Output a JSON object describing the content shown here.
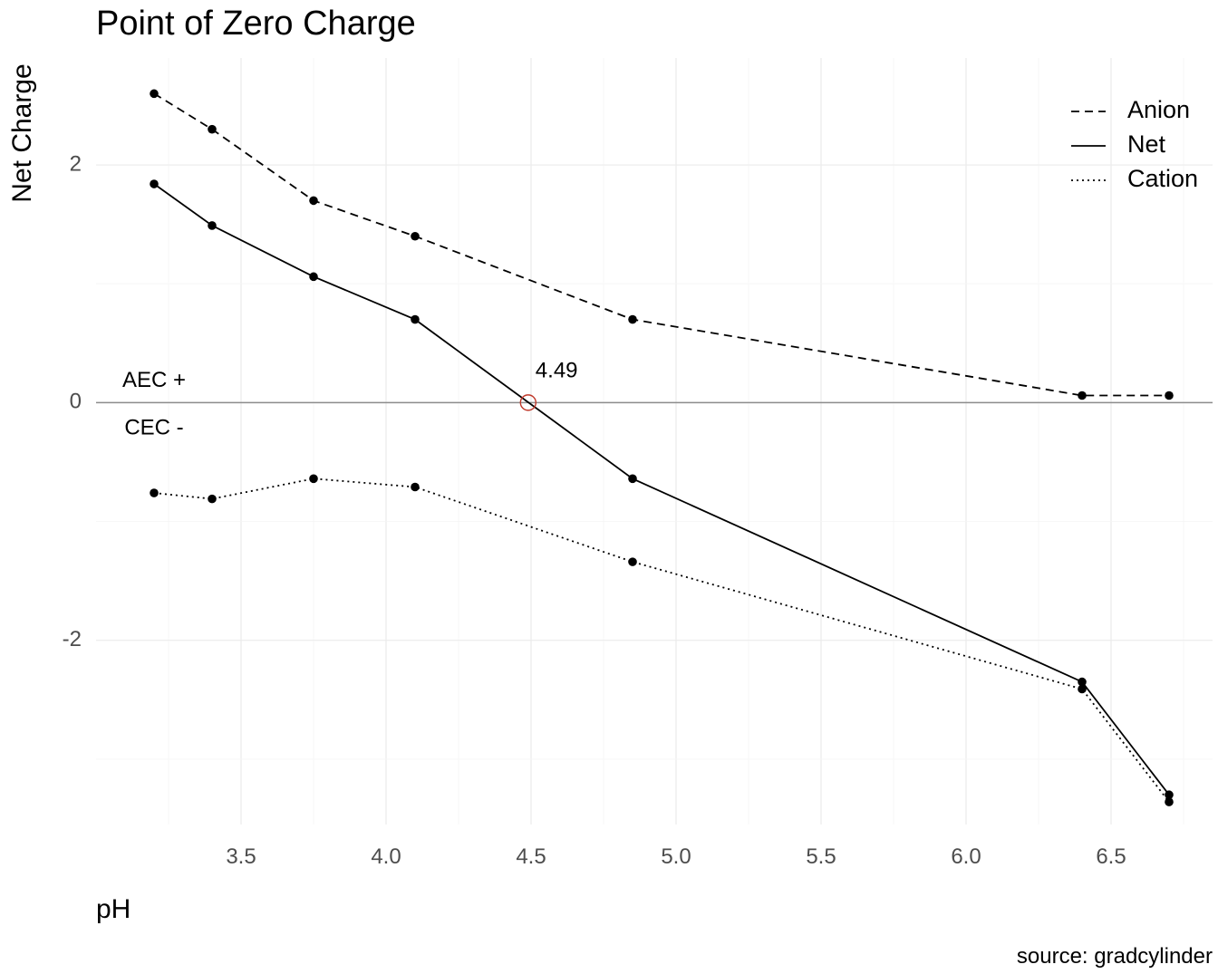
{
  "chart_data": {
    "type": "line",
    "title": "Point of Zero Charge",
    "xlabel": "pH",
    "ylabel": "Net Charge",
    "caption": "source: gradcylinder",
    "xlim": [
      3.0,
      6.85
    ],
    "ylim": [
      -3.55,
      2.9
    ],
    "x_ticks": [
      3.5,
      4.0,
      4.5,
      5.0,
      5.5,
      6.0,
      6.5
    ],
    "x_tick_labels": [
      "3.5",
      "4.0",
      "4.5",
      "5.0",
      "5.5",
      "6.0",
      "6.5"
    ],
    "y_ticks": [
      -2,
      0,
      2
    ],
    "y_tick_labels": [
      "-2",
      "0",
      "2"
    ],
    "grid": true,
    "legend_position": "top-right",
    "x": [
      3.2,
      3.4,
      3.75,
      4.1,
      4.85,
      6.4,
      6.7
    ],
    "series": [
      {
        "name": "Anion",
        "linestyle": "dashed",
        "values": [
          2.6,
          2.3,
          1.7,
          1.4,
          0.7,
          0.06,
          0.06
        ]
      },
      {
        "name": "Net",
        "linestyle": "solid",
        "values": [
          1.84,
          1.49,
          1.06,
          0.7,
          -0.64,
          -2.35,
          -3.3
        ]
      },
      {
        "name": "Cation",
        "linestyle": "dotted",
        "values": [
          -0.76,
          -0.81,
          -0.64,
          -0.71,
          -1.34,
          -2.41,
          -3.36
        ]
      }
    ],
    "reference_line": {
      "y": 0,
      "color": "#8c8c8c"
    },
    "zero_point": {
      "x": 4.49,
      "y": 0,
      "label": "4.49",
      "color": "#c0392b"
    },
    "annotations": [
      {
        "text": "AEC +",
        "x": 3.2,
        "y": 0.18
      },
      {
        "text": "CEC -",
        "x": 3.2,
        "y": -0.22
      }
    ],
    "colors": {
      "line": "#000000",
      "point": "#000000"
    }
  }
}
